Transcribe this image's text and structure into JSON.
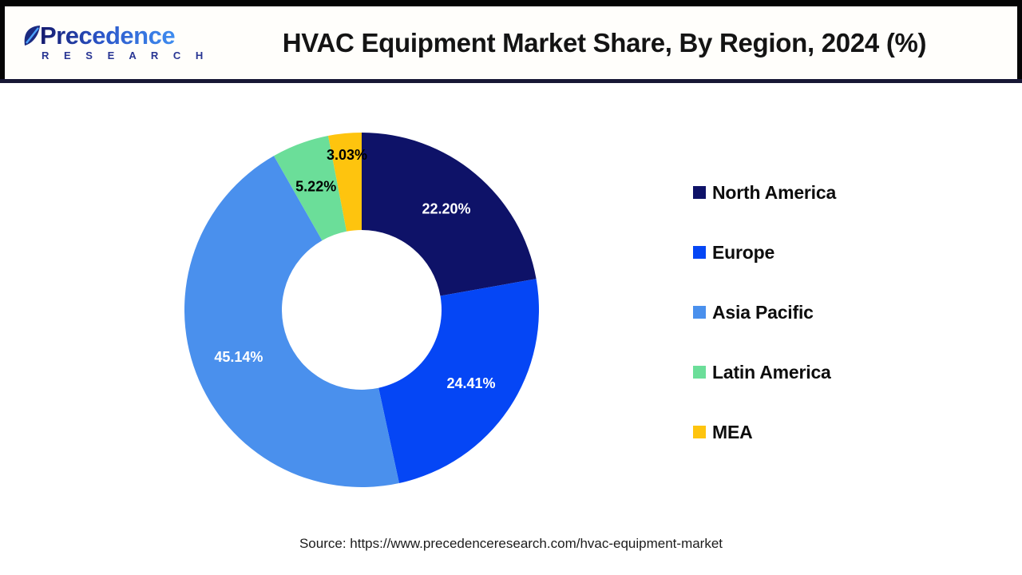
{
  "header": {
    "logo_text": "Precedence",
    "logo_subtext": "R E S E A R C H",
    "title": "HVAC Equipment Market Share, By Region, 2024 (%)"
  },
  "chart_data": {
    "type": "pie",
    "subtype": "donut",
    "title": "HVAC Equipment Market Share, By Region, 2024 (%)",
    "categories": [
      "North America",
      "Europe",
      "Asia Pacific",
      "Latin America",
      "MEA"
    ],
    "values": [
      22.2,
      24.41,
      45.14,
      5.22,
      3.03
    ],
    "labels": [
      "22.20%",
      "24.41%",
      "45.14%",
      "5.22%",
      "3.03%"
    ],
    "colors": [
      "#0E1268",
      "#0546F5",
      "#4A90ED",
      "#6BDE99",
      "#FEC40E"
    ],
    "label_colors": [
      "#ffffff",
      "#ffffff",
      "#ffffff",
      "#000000",
      "#000000"
    ],
    "start_angle_deg": 0,
    "direction": "clockwise",
    "donut_hole_ratio": 0.45,
    "legend_position": "right",
    "grid": "off"
  },
  "footer": {
    "source_text": "Source: https://www.precedenceresearch.com/hvac-equipment-market"
  }
}
